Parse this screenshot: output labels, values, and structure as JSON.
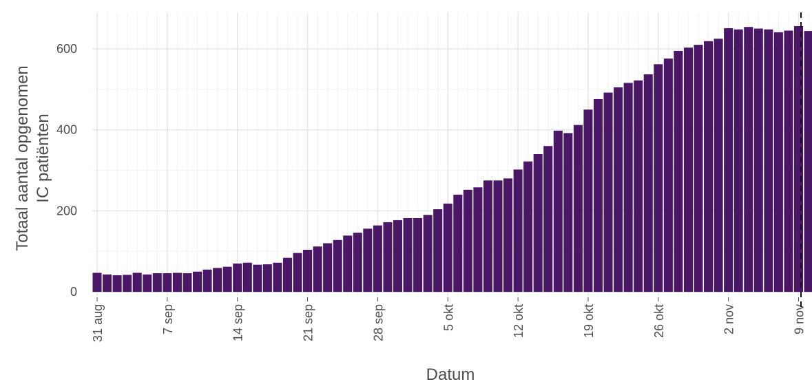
{
  "chart_data": {
    "type": "bar",
    "x_label": "Datum",
    "y_label": [
      "Totaal aantal opgenomen",
      "IC patiënten"
    ],
    "color": "#4a1766",
    "categories": [
      "31 aug",
      null,
      null,
      null,
      null,
      null,
      null,
      "7 sep",
      null,
      null,
      null,
      null,
      null,
      null,
      "14 sep",
      null,
      null,
      null,
      null,
      null,
      null,
      "21 sep",
      null,
      null,
      null,
      null,
      null,
      null,
      "28 sep",
      null,
      null,
      null,
      null,
      null,
      null,
      "5 okt",
      null,
      null,
      null,
      null,
      null,
      null,
      "12 okt",
      null,
      null,
      null,
      null,
      null,
      null,
      "19 okt",
      null,
      null,
      null,
      null,
      null,
      null,
      "26 okt",
      null,
      null,
      null,
      null,
      null,
      null,
      "2 nov",
      null,
      null,
      null,
      null,
      null,
      null,
      "9 nov",
      null,
      null
    ],
    "values": [
      47,
      43,
      41,
      42,
      47,
      43,
      46,
      46,
      47,
      46,
      50,
      55,
      59,
      62,
      70,
      72,
      67,
      68,
      72,
      84,
      96,
      104,
      112,
      120,
      128,
      139,
      146,
      156,
      164,
      172,
      177,
      182,
      182,
      190,
      204,
      218,
      240,
      252,
      258,
      275,
      275,
      280,
      302,
      322,
      340,
      360,
      398,
      392,
      412,
      450,
      476,
      492,
      505,
      516,
      522,
      537,
      562,
      576,
      595,
      603,
      610,
      619,
      625,
      651,
      648,
      654,
      650,
      648,
      641,
      645,
      656,
      644,
      622
    ],
    "ylim": [
      -10,
      690
    ],
    "yticks": [
      0,
      200,
      400,
      600
    ],
    "yticks_minor": [
      100,
      300,
      500
    ],
    "grid": true
  }
}
